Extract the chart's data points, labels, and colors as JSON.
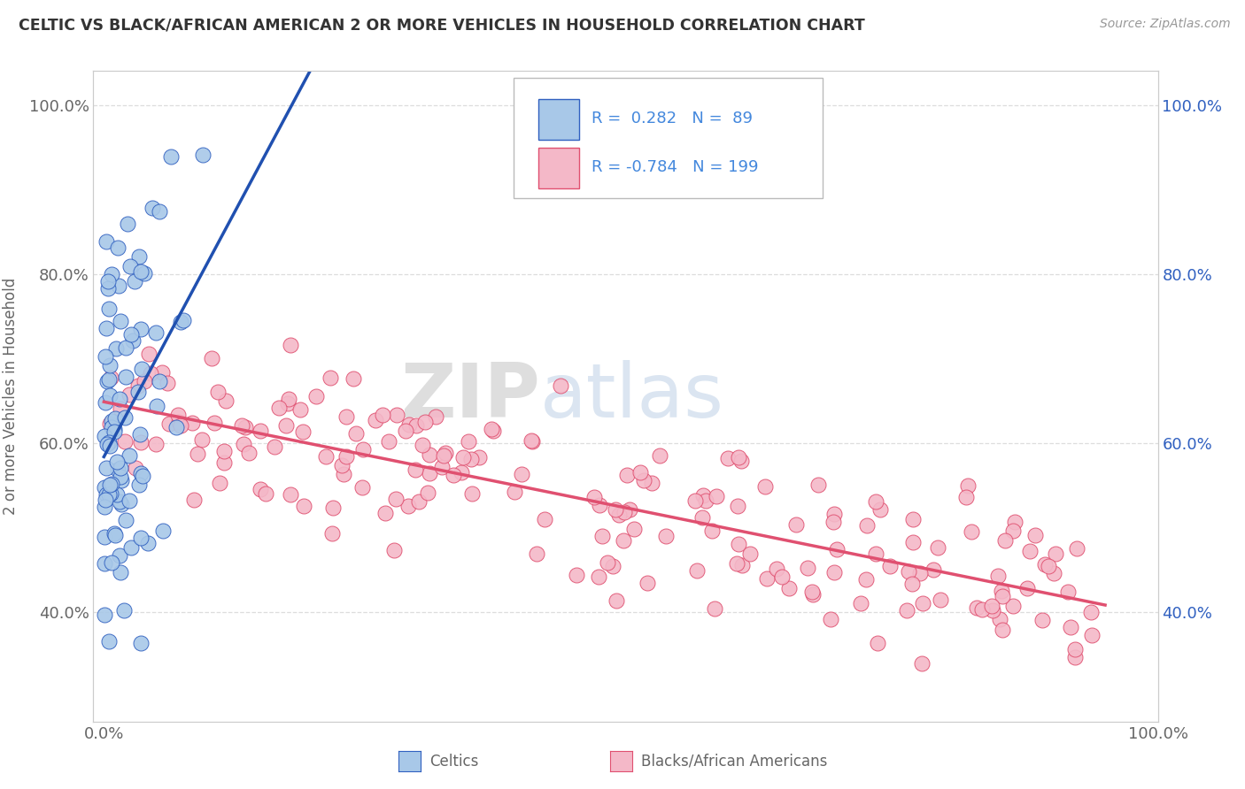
{
  "title": "CELTIC VS BLACK/AFRICAN AMERICAN 2 OR MORE VEHICLES IN HOUSEHOLD CORRELATION CHART",
  "source": "Source: ZipAtlas.com",
  "ylabel": "2 or more Vehicles in Household",
  "xtick_labels": [
    "0.0%",
    "100.0%"
  ],
  "ytick_labels": [
    "40.0%",
    "60.0%",
    "80.0%",
    "100.0%"
  ],
  "yticks": [
    40,
    60,
    80,
    100
  ],
  "xlim": [
    -1,
    100
  ],
  "ylim": [
    27,
    104
  ],
  "legend_r_blue": "0.282",
  "legend_n_blue": "89",
  "legend_r_pink": "-0.784",
  "legend_n_pink": "199",
  "blue_fill": "#a8c8e8",
  "pink_fill": "#f4b8c8",
  "blue_edge": "#3060c0",
  "pink_edge": "#e05070",
  "blue_line": "#2050b0",
  "pink_line": "#e05070",
  "watermark_zip": "ZIP",
  "watermark_atlas": "atlas",
  "bg_color": "#ffffff",
  "grid_color": "#dddddd",
  "title_color": "#333333",
  "label_color": "#666666",
  "legend_text_color": "#4488dd",
  "source_color": "#999999"
}
